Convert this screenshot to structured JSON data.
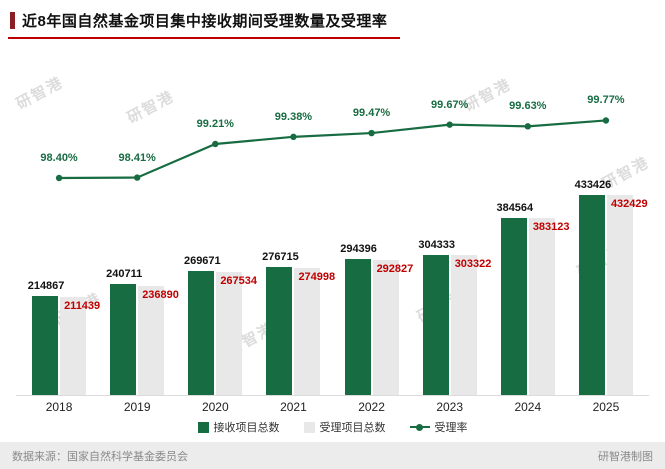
{
  "title": "近8年国自然基金项目集中接收期间受理数量及受理率",
  "watermark": {
    "text": "研智港"
  },
  "footer": {
    "source": "数据来源：国家自然科学基金委员会",
    "credit": "研智港制图"
  },
  "colors": {
    "bar_green": "#186c42",
    "bar_gray": "#e8e8e8",
    "value_red": "#c00000",
    "line_green": "#186c42",
    "title_accent": "#8a1e24",
    "title_underline": "#c00000",
    "footer_bg": "#ececec"
  },
  "legend": [
    {
      "label": "接收项目总数",
      "type": "bar",
      "color": "#186c42"
    },
    {
      "label": "受理项目总数",
      "type": "bar",
      "color": "#e8e8e8"
    },
    {
      "label": "受理率",
      "type": "line",
      "color": "#186c42"
    }
  ],
  "chart_data": {
    "type": "bar+line",
    "title": "近8年国自然基金项目集中接收期间受理数量及受理率",
    "categories": [
      "2018",
      "2019",
      "2020",
      "2021",
      "2022",
      "2023",
      "2024",
      "2025"
    ],
    "series": [
      {
        "name": "接收项目总数",
        "type": "bar",
        "color": "#186c42",
        "values": [
          214867,
          240711,
          269671,
          276715,
          294396,
          304333,
          384564,
          433426
        ]
      },
      {
        "name": "受理项目总数",
        "type": "bar",
        "color": "#e8e8e8",
        "values": [
          211439,
          236890,
          267534,
          274998,
          292827,
          303322,
          383123,
          432429
        ]
      },
      {
        "name": "受理率",
        "type": "line",
        "color": "#186c42",
        "axis": "secondary",
        "values": [
          98.4,
          98.41,
          99.21,
          99.38,
          99.47,
          99.67,
          99.63,
          99.77
        ],
        "labels": [
          "98.40%",
          "98.41%",
          "99.21%",
          "99.38%",
          "99.47%",
          "99.67%",
          "99.63%",
          "99.77%"
        ]
      }
    ],
    "y2_unit": "%",
    "grid": false,
    "legend_position": "bottom"
  }
}
